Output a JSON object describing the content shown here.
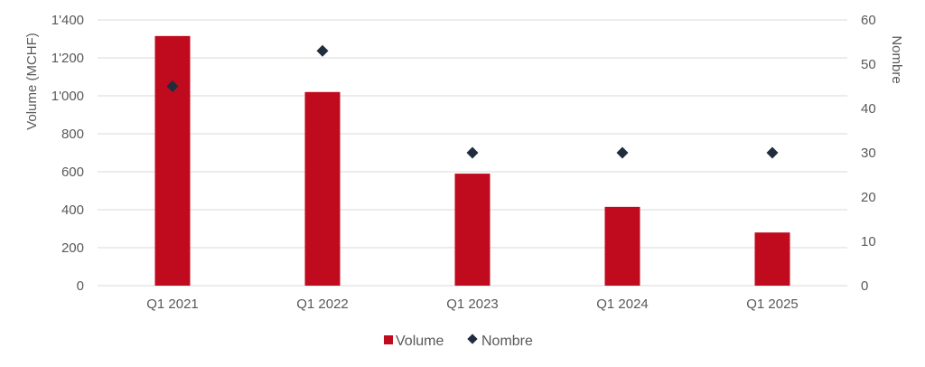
{
  "chart_data": {
    "type": "bar",
    "categories": [
      "Q1 2021",
      "Q1 2022",
      "Q1 2023",
      "Q1 2024",
      "Q1 2025"
    ],
    "series": [
      {
        "name": "Volume",
        "kind": "bar",
        "axis": "left",
        "values": [
          1315,
          1020,
          590,
          415,
          280
        ]
      },
      {
        "name": "Nombre",
        "kind": "scatter",
        "axis": "right",
        "values": [
          45,
          53,
          30,
          30,
          30
        ]
      }
    ],
    "ylabel": "Volume (MCHF)",
    "y2label": "Nombre",
    "ylim": [
      0,
      1400
    ],
    "y2lim": [
      0,
      60
    ],
    "yticks": [
      "0",
      "200",
      "400",
      "600",
      "800",
      "1'000",
      "1'200",
      "1'400"
    ],
    "y2ticks": [
      "0",
      "10",
      "20",
      "30",
      "40",
      "50",
      "60"
    ],
    "grid": true,
    "legend": "bottom",
    "colors": {
      "bar": "#c00a1e",
      "marker": "#1f2d3d",
      "grid": "#d9d9d9",
      "text": "#595959"
    }
  }
}
